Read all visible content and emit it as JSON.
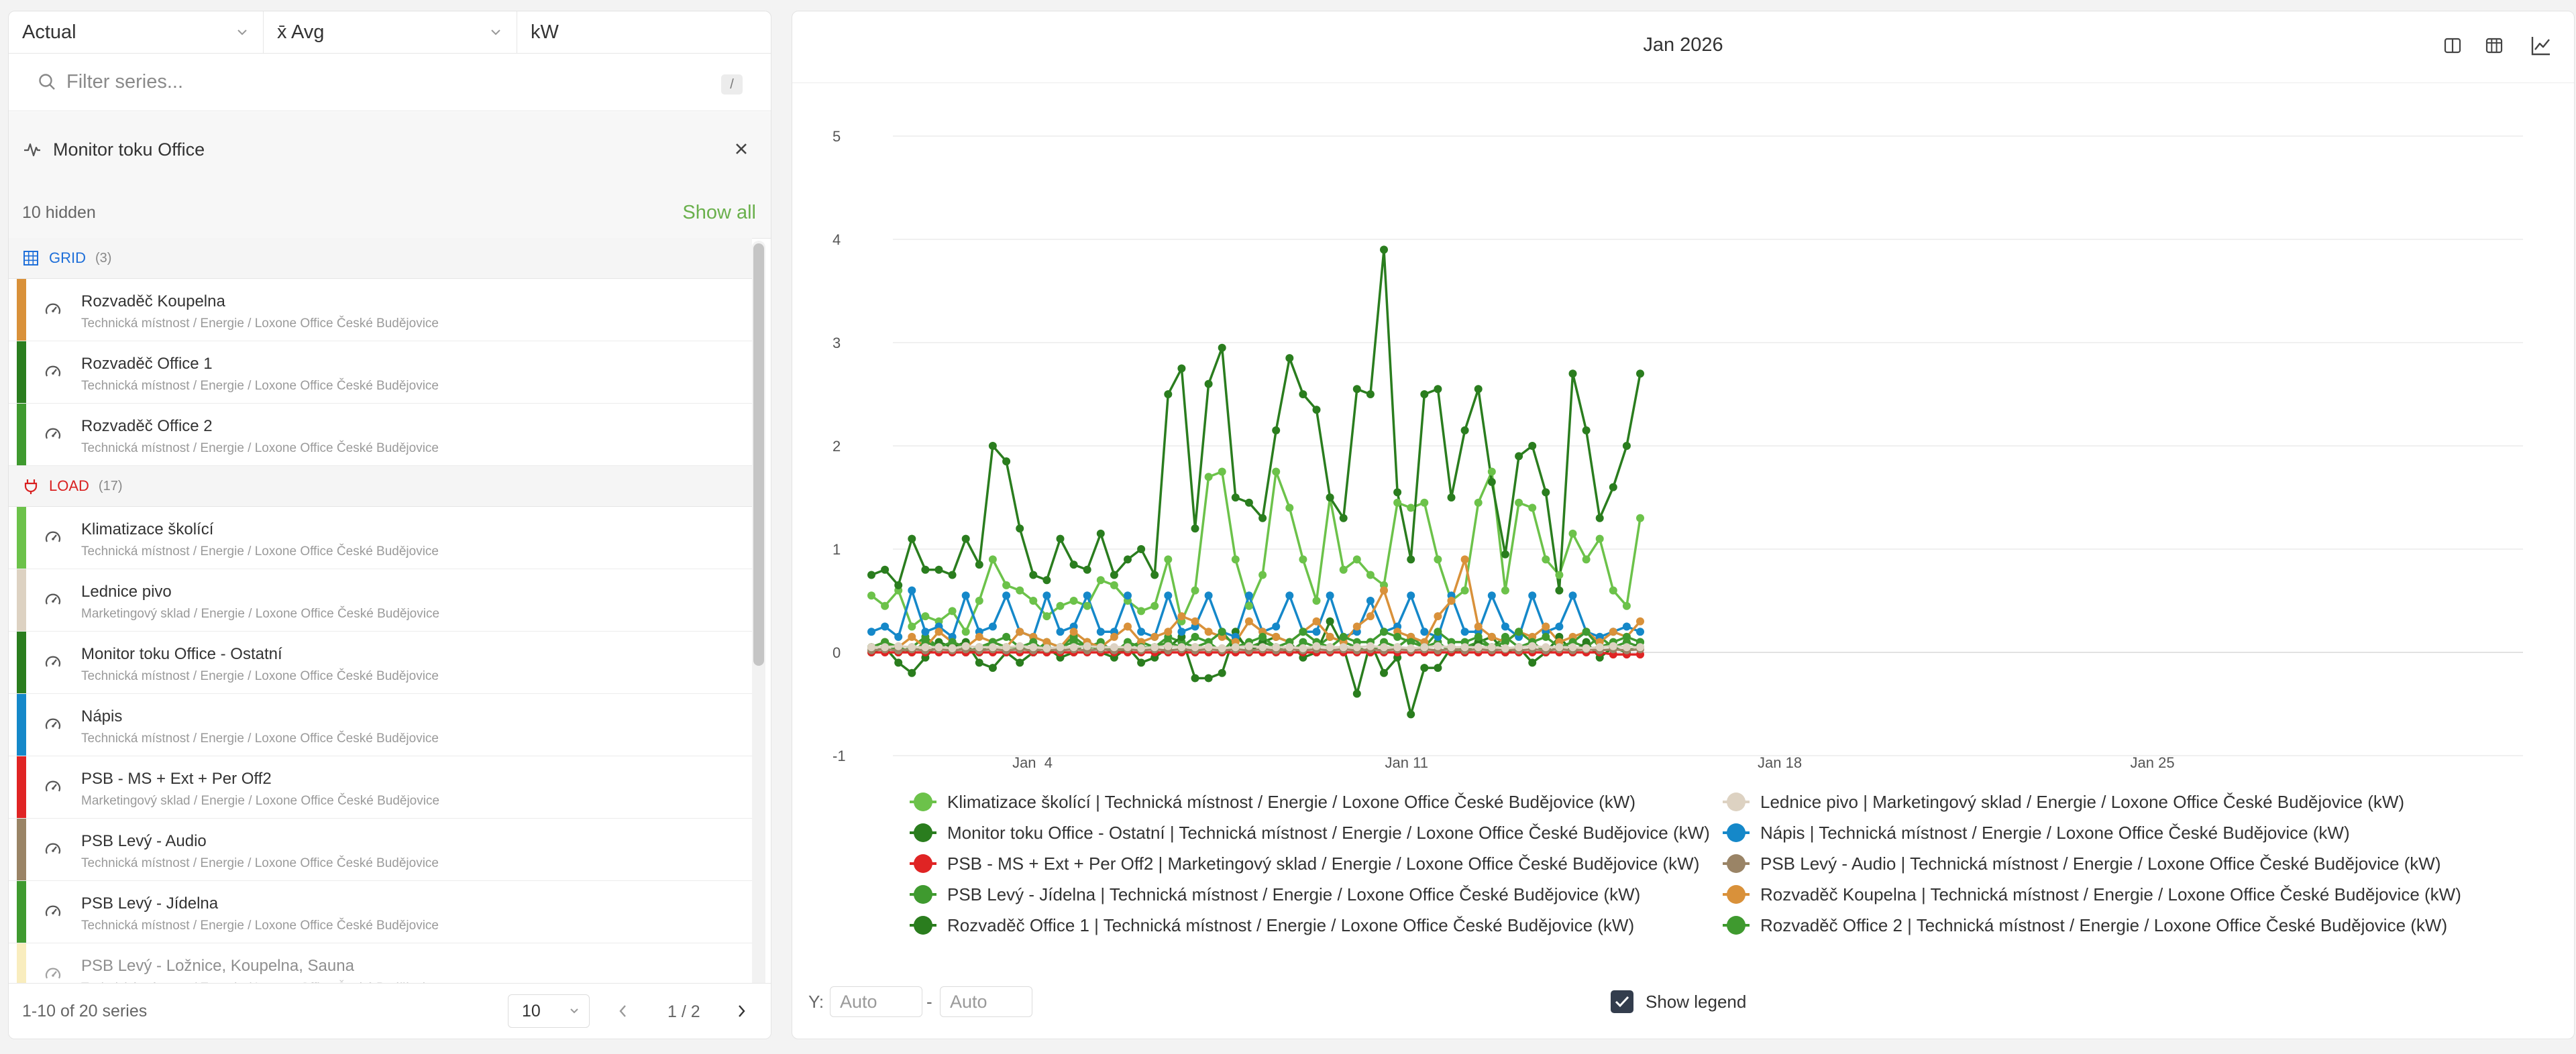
{
  "selectors": {
    "mode": "Actual",
    "aggregation": "x̄ Avg",
    "unit": "kW"
  },
  "filter": {
    "placeholder": "Filter series...",
    "shortcut": "/"
  },
  "group": {
    "name": "Monitor toku Office"
  },
  "hidden": {
    "count_label": "10 hidden",
    "show_all_label": "Show all"
  },
  "categories": [
    {
      "name": "GRID",
      "count": "(3)",
      "color": "#1e6fd9",
      "items": [
        {
          "name": "Rozvaděč Koupelna",
          "path": "Technická místnost / Energie / Loxone Office České Budějovice",
          "color": "#d9913a"
        },
        {
          "name": "Rozvaděč Office 1",
          "path": "Technická místnost / Energie / Loxone Office České Budějovice",
          "color": "#2a7d1e"
        },
        {
          "name": "Rozvaděč Office 2",
          "path": "Technická místnost / Energie / Loxone Office České Budějovice",
          "color": "#3f9a2f"
        }
      ]
    },
    {
      "name": "LOAD",
      "count": "(17)",
      "color": "#d92020",
      "items": [
        {
          "name": "Klimatizace školící",
          "path": "Technická místnost / Energie / Loxone Office České Budějovice",
          "color": "#6cc24a"
        },
        {
          "name": "Lednice pivo",
          "path": "Marketingový sklad / Energie / Loxone Office České Budějovice",
          "color": "#ddd2c2"
        },
        {
          "name": "Monitor toku Office - Ostatní",
          "path": "Technická místnost / Energie / Loxone Office České Budějovice",
          "color": "#2a7d1e"
        },
        {
          "name": "Nápis",
          "path": "Technická místnost / Energie / Loxone Office České Budějovice",
          "color": "#1588c9"
        },
        {
          "name": "PSB - MS + Ext + Per Off2",
          "path": "Marketingový sklad / Energie / Loxone Office České Budějovice",
          "color": "#e02424"
        },
        {
          "name": "PSB Levý - Audio",
          "path": "Technická místnost / Energie / Loxone Office České Budějovice",
          "color": "#9a8466"
        },
        {
          "name": "PSB Levý - Jídelna",
          "path": "Technická místnost / Energie / Loxone Office České Budějovice",
          "color": "#3f9a2f"
        },
        {
          "name": "PSB Levý - Ložnice, Koupelna, Sauna",
          "path": "Technická místnost / Energie / Loxone Office České Budějovice",
          "color": "#f5e08a"
        }
      ]
    }
  ],
  "footer": {
    "range_label": "1-10 of 20 series",
    "page_size": "10",
    "page_label": "1 / 2"
  },
  "chart_header": {
    "title": "Jan 2026"
  },
  "chart_data": {
    "type": "line",
    "y_ticks": [
      "5",
      "4",
      "3",
      "2",
      "1",
      "0",
      "-1"
    ],
    "ylim": [
      -1,
      5
    ],
    "x_ticks": [
      "Jan  4",
      "Jan 11",
      "Jan 18",
      "Jan 25"
    ],
    "grid": true,
    "series": [
      {
        "name": "Klimatizace školící | Technická místnost / Energie / Loxone Office České Budějovice (kW)",
        "color": "#6cc24a",
        "values": [
          0.55,
          0.45,
          0.6,
          0.25,
          0.35,
          0.3,
          0.4,
          0.2,
          0.5,
          0.9,
          0.65,
          0.6,
          0.5,
          0.35,
          0.45,
          0.5,
          0.45,
          0.7,
          0.65,
          0.5,
          0.4,
          0.45,
          0.9,
          0.3,
          0.6,
          1.7,
          1.75,
          0.9,
          0.45,
          0.75,
          1.75,
          1.4,
          0.9,
          0.5,
          1.5,
          0.8,
          0.9,
          0.75,
          0.65,
          1.45,
          1.4,
          1.45,
          0.9,
          0.5,
          0.6,
          1.45,
          1.75,
          0.6,
          1.45,
          1.4,
          0.9,
          0.75,
          1.15,
          0.9,
          1.1,
          0.6,
          0.45,
          1.3
        ]
      },
      {
        "name": "Lednice pivo | Marketingový sklad / Energie / Loxone Office České Budějovice (kW)",
        "color": "#ddd2c2",
        "values": [
          0.05,
          0.05,
          0.06,
          0.05,
          0.05,
          0.05,
          0.04,
          0.06,
          0.05,
          0.05,
          0.05,
          0.06,
          0.05,
          0.04,
          0.05,
          0.05,
          0.06,
          0.05,
          0.05,
          0.05,
          0.04,
          0.05,
          0.06,
          0.05,
          0.05,
          0.05,
          0.04,
          0.05,
          0.06,
          0.05,
          0.05,
          0.05,
          0.04,
          0.06,
          0.05,
          0.05,
          0.05,
          0.06,
          0.05,
          0.05,
          0.04,
          0.05,
          0.06,
          0.05,
          0.05,
          0.05,
          0.05,
          0.04,
          0.05,
          0.06,
          0.05,
          0.05,
          0.05,
          0.04,
          0.05,
          0.06,
          0.05,
          0.05
        ]
      },
      {
        "name": "Monitor toku Office - Ostatní | Technická místnost / Energie / Loxone Office České Budějovice (kW)",
        "color": "#2a7d1e",
        "values": [
          0.0,
          0.05,
          -0.1,
          -0.2,
          -0.05,
          0.1,
          0.05,
          0.1,
          -0.1,
          -0.15,
          0.0,
          -0.1,
          0.0,
          0.05,
          -0.05,
          0.0,
          0.1,
          0.0,
          -0.05,
          0.05,
          -0.1,
          -0.05,
          0.05,
          0.15,
          -0.25,
          -0.25,
          -0.2,
          0.2,
          0.0,
          0.1,
          0.15,
          0.1,
          -0.05,
          0.0,
          0.3,
          0.05,
          -0.4,
          0.1,
          -0.2,
          -0.05,
          -0.6,
          -0.15,
          -0.15,
          0.05,
          0.0,
          0.1,
          0.15,
          0.0,
          0.05,
          -0.1,
          0.0,
          0.15,
          0.0,
          0.1,
          -0.05,
          0.05,
          0.0,
          0.1
        ]
      },
      {
        "name": "Nápis | Technická místnost / Energie / Loxone Office České Budějovice (kW)",
        "color": "#1588c9",
        "values": [
          0.2,
          0.25,
          0.15,
          0.6,
          0.2,
          0.25,
          0.15,
          0.55,
          0.2,
          0.25,
          0.55,
          0.2,
          0.15,
          0.55,
          0.2,
          0.25,
          0.55,
          0.2,
          0.2,
          0.55,
          0.2,
          0.15,
          0.55,
          0.2,
          0.25,
          0.55,
          0.2,
          0.15,
          0.55,
          0.2,
          0.25,
          0.55,
          0.2,
          0.2,
          0.55,
          0.15,
          0.2,
          0.5,
          0.2,
          0.25,
          0.55,
          0.2,
          0.15,
          0.55,
          0.2,
          0.2,
          0.55,
          0.25,
          0.15,
          0.55,
          0.2,
          0.25,
          0.55,
          0.2,
          0.15,
          0.2,
          0.25,
          0.2
        ]
      },
      {
        "name": "PSB - MS + Ext + Per Off2 | Marketingový sklad / Energie / Loxone Office České Budějovice (kW)",
        "color": "#e02424",
        "values": [
          0.0,
          0.0,
          0.0,
          0.0,
          0.0,
          0.0,
          0.0,
          0.0,
          0.0,
          0.0,
          0.0,
          0.0,
          0.0,
          0.0,
          0.0,
          0.0,
          0.0,
          0.0,
          0.0,
          0.0,
          0.0,
          0.0,
          0.0,
          0.0,
          0.0,
          0.0,
          0.0,
          0.0,
          0.0,
          0.0,
          0.0,
          0.0,
          0.0,
          0.0,
          0.0,
          0.0,
          0.0,
          0.0,
          0.0,
          0.0,
          0.0,
          0.0,
          0.0,
          0.0,
          0.0,
          0.0,
          0.0,
          0.0,
          0.0,
          0.0,
          0.0,
          0.0,
          0.0,
          0.0,
          0.0,
          -0.02,
          -0.02,
          -0.02
        ]
      },
      {
        "name": "PSB Levý - Audio | Technická místnost / Energie / Loxone Office České Budějovice (kW)",
        "color": "#9a8466",
        "values": [
          0.02,
          0.03,
          0.02,
          0.03,
          0.02,
          0.03,
          0.02,
          0.03,
          0.02,
          0.03,
          0.02,
          0.03,
          0.02,
          0.03,
          0.02,
          0.03,
          0.02,
          0.03,
          0.02,
          0.03,
          0.02,
          0.03,
          0.02,
          0.03,
          0.02,
          0.03,
          0.02,
          0.03,
          0.02,
          0.03,
          0.02,
          0.03,
          0.02,
          0.03,
          0.02,
          0.03,
          0.02,
          0.03,
          0.02,
          0.03,
          0.02,
          0.03,
          0.02,
          0.03,
          0.02,
          0.03,
          0.02,
          0.03,
          0.02,
          0.03,
          0.02,
          0.03,
          0.02,
          0.03,
          0.02,
          0.03,
          0.02,
          0.03
        ]
      },
      {
        "name": "PSB Levý - Jídelna | Technická místnost / Energie / Loxone Office České Budějovice (kW)",
        "color": "#3f9a2f",
        "values": [
          0.05,
          0.1,
          0.05,
          0.0,
          0.1,
          0.05,
          0.1,
          0.05,
          0.0,
          0.1,
          0.05,
          0.05,
          0.1,
          0.0,
          0.05,
          0.1,
          0.05,
          0.05,
          0.0,
          0.1,
          0.05,
          0.05,
          0.1,
          0.05,
          0.15,
          0.1,
          0.2,
          0.05,
          0.1,
          0.15,
          0.05,
          0.1,
          0.2,
          0.1,
          0.05,
          0.15,
          0.1,
          0.1,
          0.2,
          0.15,
          0.1,
          0.05,
          0.2,
          0.1,
          0.1,
          0.15,
          0.05,
          0.1,
          0.2,
          0.1,
          0.15,
          0.05,
          0.1,
          0.2,
          0.05,
          0.1,
          0.15,
          0.1
        ]
      },
      {
        "name": "Rozvaděč Koupelna | Technická místnost / Energie / Loxone Office České Budějovice (kW)",
        "color": "#d9913a",
        "values": [
          0.05,
          0.1,
          0.05,
          0.15,
          0.05,
          0.2,
          0.1,
          0.05,
          0.15,
          0.1,
          0.05,
          0.2,
          0.15,
          0.1,
          0.05,
          0.2,
          0.1,
          0.05,
          0.15,
          0.25,
          0.1,
          0.15,
          0.2,
          0.35,
          0.3,
          0.2,
          0.15,
          0.1,
          0.3,
          0.2,
          0.15,
          0.1,
          0.2,
          0.3,
          0.15,
          0.1,
          0.25,
          0.35,
          0.6,
          0.2,
          0.15,
          0.1,
          0.35,
          0.5,
          0.9,
          0.25,
          0.15,
          0.1,
          0.2,
          0.15,
          0.25,
          0.1,
          0.15,
          0.2,
          0.1,
          0.2,
          0.15,
          0.3
        ]
      },
      {
        "name": "Rozvaděč Office 1 | Technická místnost / Energie / Loxone Office České Budějovice (kW)",
        "color": "#2a7d1e",
        "values": [
          0.75,
          0.8,
          0.65,
          1.1,
          0.8,
          0.8,
          0.75,
          1.1,
          0.85,
          2.0,
          1.85,
          1.2,
          0.75,
          0.7,
          1.1,
          0.85,
          0.8,
          1.15,
          0.75,
          0.9,
          1.0,
          0.75,
          2.5,
          2.75,
          1.2,
          2.6,
          2.95,
          1.5,
          1.45,
          1.3,
          2.15,
          2.85,
          2.5,
          2.35,
          1.5,
          1.3,
          2.55,
          2.5,
          3.9,
          1.55,
          0.9,
          2.5,
          2.55,
          1.5,
          2.15,
          2.55,
          1.65,
          0.95,
          1.9,
          2.0,
          1.55,
          0.6,
          2.7,
          2.15,
          1.3,
          1.6,
          2.0,
          2.7
        ]
      },
      {
        "name": "Rozvaděč Office 2 | Technická místnost / Energie / Loxone Office České Budějovice (kW)",
        "color": "#3f9a2f",
        "values": [
          0.05,
          0.1,
          0.0,
          0.05,
          0.15,
          0.05,
          0.1,
          0.0,
          0.05,
          0.1,
          0.15,
          0.05,
          0.0,
          0.1,
          0.05,
          0.15,
          0.05,
          0.1,
          0.0,
          0.05,
          0.1,
          0.05,
          0.15,
          0.1,
          0.05,
          0.1,
          0.0,
          0.15,
          0.05,
          0.1,
          0.05,
          0.0,
          0.1,
          0.05,
          0.15,
          0.1,
          0.05,
          0.0,
          0.1,
          0.05,
          0.15,
          0.05,
          0.1,
          0.0,
          0.05,
          0.1,
          0.05,
          0.15,
          0.05,
          0.1,
          0.0,
          0.05,
          0.1,
          0.05,
          0.15,
          0.05,
          0.1,
          0.05
        ]
      }
    ]
  },
  "legend_toggle_label": "Show legend",
  "y_range": {
    "label": "Y:",
    "min_placeholder": "Auto",
    "separator": "-",
    "max_placeholder": "Auto"
  }
}
